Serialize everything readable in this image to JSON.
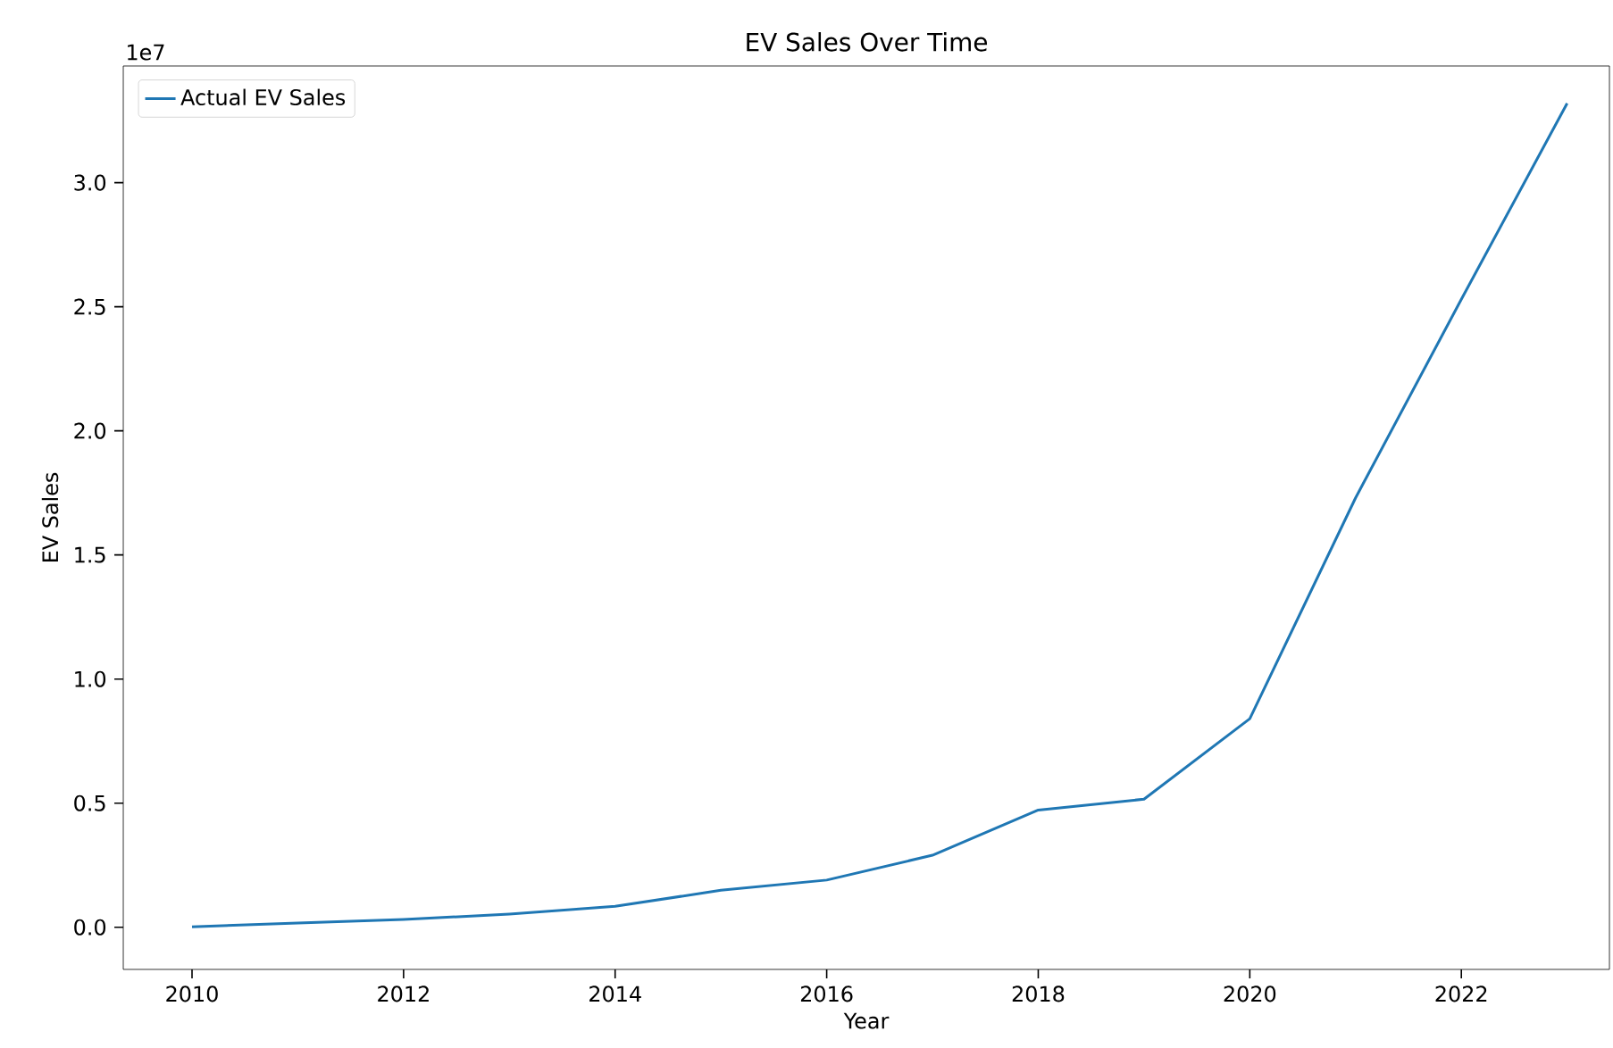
{
  "chart_data": {
    "type": "line",
    "title": "EV Sales Over Time",
    "xlabel": "Year",
    "ylabel": "EV Sales",
    "annotations": [
      "1e7"
    ],
    "x": [
      2010,
      2011,
      2012,
      2013,
      2014,
      2015,
      2016,
      2017,
      2018,
      2019,
      2020,
      2021,
      2022,
      2023
    ],
    "series": [
      {
        "name": "Actual EV Sales",
        "color": "#1f77b4",
        "values": [
          0.002,
          0.017,
          0.031,
          0.053,
          0.084,
          0.149,
          0.19,
          0.29,
          0.472,
          0.516,
          0.84,
          1.73,
          2.53,
          3.32
        ]
      }
    ],
    "xlim": [
      2009.35,
      2023.4
    ],
    "ylim": [
      -0.17,
      3.47
    ],
    "xticks": [
      2010,
      2012,
      2014,
      2016,
      2018,
      2020,
      2022
    ],
    "yticks": [
      {
        "value": 0,
        "label": "0.0"
      },
      {
        "value": 0.5,
        "label": "0.5"
      },
      {
        "value": 1.0,
        "label": "1.0"
      },
      {
        "value": 1.5,
        "label": "1.5"
      },
      {
        "value": 2.0,
        "label": "2.0"
      },
      {
        "value": 2.5,
        "label": "2.5"
      },
      {
        "value": 3.0,
        "label": "3.0"
      }
    ],
    "legend": "top left",
    "grid": false,
    "marker": "none",
    "line_style": "solid"
  }
}
